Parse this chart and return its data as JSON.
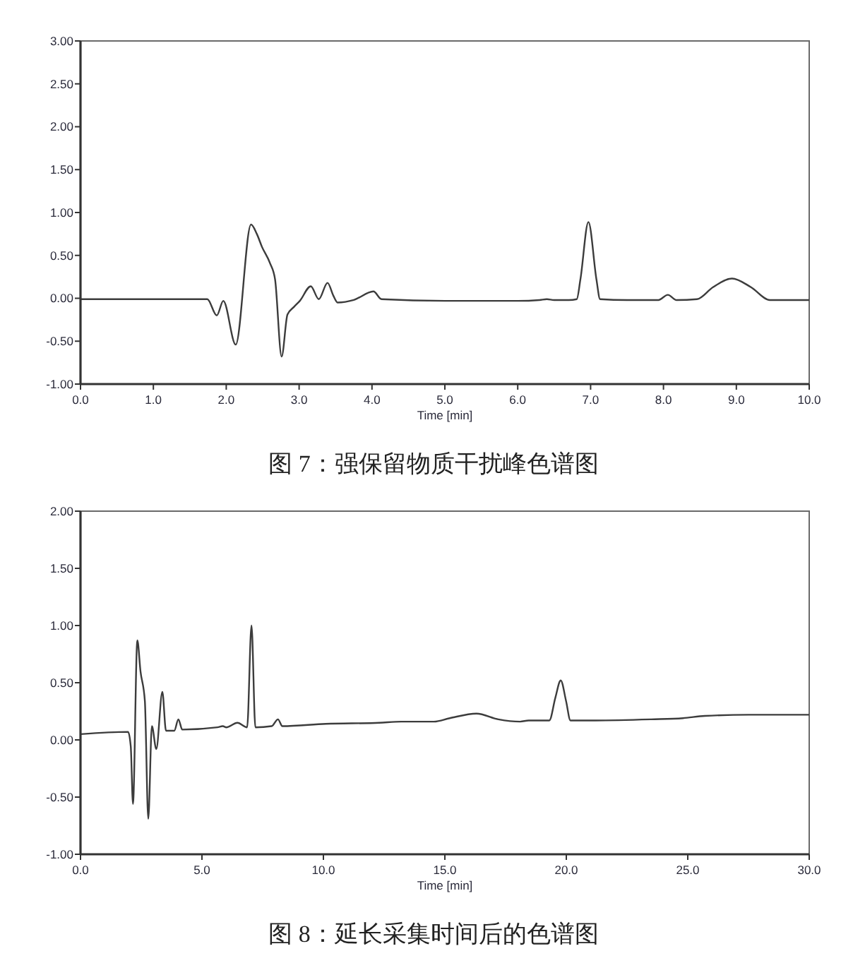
{
  "chart_data": [
    {
      "type": "line",
      "xlabel": "Time [min]",
      "annotations": [
        "图 7：强保留物质干扰峰色谱图"
      ],
      "xlim": [
        0,
        10
      ],
      "ylim": [
        -1,
        3
      ],
      "xticks": [
        {
          "value": 0,
          "label": "0.0"
        },
        {
          "value": 1,
          "label": "1.0"
        },
        {
          "value": 2,
          "label": "2.0"
        },
        {
          "value": 3,
          "label": "3.0"
        },
        {
          "value": 4,
          "label": "4.0"
        },
        {
          "value": 5,
          "label": "5.0"
        },
        {
          "value": 6,
          "label": "6.0"
        },
        {
          "value": 7,
          "label": "7.0"
        },
        {
          "value": 8,
          "label": "8.0"
        },
        {
          "value": 9,
          "label": "9.0"
        },
        {
          "value": 10,
          "label": "10.0"
        }
      ],
      "yticks": [
        {
          "value": -1,
          "label": "-1.00"
        },
        {
          "value": -0.5,
          "label": "-0.50"
        },
        {
          "value": 0,
          "label": "0.00"
        },
        {
          "value": 0.5,
          "label": "0.50"
        },
        {
          "value": 1,
          "label": "1.00"
        },
        {
          "value": 1.5,
          "label": "1.50"
        },
        {
          "value": 2,
          "label": "2.00"
        },
        {
          "value": 2.5,
          "label": "2.50"
        },
        {
          "value": 3,
          "label": "3.00"
        }
      ],
      "x": [
        0,
        1.0,
        1.74,
        1.87,
        1.96,
        2.13,
        2.34,
        2.42,
        2.49,
        2.6,
        2.67,
        2.76,
        2.84,
        2.93,
        3.01,
        3.16,
        3.27,
        3.39,
        3.47,
        3.53,
        3.75,
        4.02,
        4.13,
        5.0,
        6.0,
        6.3,
        6.4,
        6.5,
        6.7,
        6.81,
        6.86,
        6.97,
        7.08,
        7.13,
        7.5,
        7.93,
        8.06,
        8.18,
        8.46,
        8.68,
        8.94,
        9.2,
        9.46,
        10.0
      ],
      "series": [
        {
          "color": "#3c3c3c",
          "values": [
            -0.01,
            -0.01,
            -0.01,
            -0.2,
            -0.03,
            -0.54,
            0.86,
            0.75,
            0.6,
            0.41,
            0.22,
            -0.68,
            -0.19,
            -0.1,
            -0.03,
            0.14,
            -0.01,
            0.18,
            0.03,
            -0.05,
            -0.02,
            0.08,
            -0.01,
            -0.03,
            -0.03,
            -0.02,
            -0.01,
            -0.02,
            -0.02,
            -0.01,
            0.22,
            0.89,
            0.22,
            -0.01,
            -0.02,
            -0.02,
            0.04,
            -0.02,
            -0.01,
            0.13,
            0.23,
            0.13,
            -0.02,
            -0.02
          ]
        }
      ]
    },
    {
      "type": "line",
      "xlabel": "Time [min]",
      "annotations": [
        "图 8：延长采集时间后的色谱图"
      ],
      "xlim": [
        0,
        30
      ],
      "ylim": [
        -1,
        2
      ],
      "xticks": [
        {
          "value": 0,
          "label": "0.0"
        },
        {
          "value": 5,
          "label": "5.0"
        },
        {
          "value": 10,
          "label": "10.0"
        },
        {
          "value": 15,
          "label": "15.0"
        },
        {
          "value": 20,
          "label": "20.0"
        },
        {
          "value": 25,
          "label": "25.0"
        },
        {
          "value": 30,
          "label": "30.0"
        }
      ],
      "yticks": [
        {
          "value": -1,
          "label": "-1.00"
        },
        {
          "value": -0.5,
          "label": "-0.50"
        },
        {
          "value": 0,
          "label": "0.00"
        },
        {
          "value": 0.5,
          "label": "0.50"
        },
        {
          "value": 1,
          "label": "1.00"
        },
        {
          "value": 1.5,
          "label": "1.50"
        },
        {
          "value": 2,
          "label": "2.00"
        }
      ],
      "x": [
        0,
        1.96,
        2.07,
        2.16,
        2.34,
        2.47,
        2.65,
        2.79,
        2.94,
        3.12,
        3.37,
        3.52,
        3.86,
        4.03,
        4.19,
        5.64,
        5.86,
        6.0,
        6.46,
        6.86,
        7.04,
        7.2,
        7.87,
        8.13,
        8.31,
        10.1,
        12.3,
        13.2,
        14.55,
        15.2,
        16.3,
        17.2,
        18.1,
        18.45,
        19.3,
        19.55,
        19.77,
        19.99,
        20.17,
        21.2,
        23.5,
        24.8,
        25.7,
        27.5,
        30.0
      ],
      "series": [
        {
          "color": "#3c3c3c",
          "values": [
            0.05,
            0.07,
            -0.06,
            -0.56,
            0.87,
            0.6,
            0.34,
            -0.69,
            0.12,
            -0.08,
            0.42,
            0.08,
            0.08,
            0.18,
            0.09,
            0.11,
            0.12,
            0.11,
            0.15,
            0.11,
            1.0,
            0.11,
            0.12,
            0.18,
            0.12,
            0.14,
            0.15,
            0.16,
            0.16,
            0.19,
            0.23,
            0.18,
            0.16,
            0.17,
            0.17,
            0.37,
            0.52,
            0.34,
            0.17,
            0.17,
            0.18,
            0.19,
            0.21,
            0.22,
            0.22
          ]
        }
      ]
    }
  ]
}
